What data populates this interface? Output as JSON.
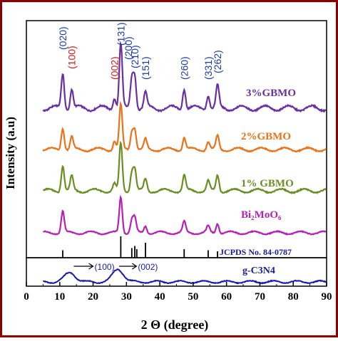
{
  "chart_data": {
    "type": "line",
    "xlabel": "2 Θ (degree)",
    "ylabel": "Intensity (a.u)",
    "xlim": [
      0,
      90
    ],
    "xticks": [
      0,
      10,
      20,
      30,
      40,
      50,
      60,
      70,
      80,
      90
    ],
    "grid": false,
    "legend": "none",
    "colors": {
      "frame": "#8b0000",
      "s3": "#6a2fa0",
      "s2": "#e8731a",
      "s1": "#6b8e23",
      "bmo": "#b422b4",
      "gcn": "#1a1aa8",
      "ref": "#000000"
    },
    "series": [
      {
        "name": "3%GBMO",
        "color": "#6a2fa0",
        "peaks": [
          [
            10.9,
            0.55
          ],
          [
            13.6,
            0.3
          ],
          [
            26.4,
            0.18
          ],
          [
            28.3,
            1.0
          ],
          [
            31.6,
            0.45
          ],
          [
            32.5,
            0.5
          ],
          [
            35.7,
            0.25
          ],
          [
            47.3,
            0.32
          ],
          [
            54.5,
            0.22
          ],
          [
            57.3,
            0.34
          ]
        ]
      },
      {
        "name": "2%GBMO",
        "color": "#e8731a",
        "peaks": [
          [
            10.9,
            0.5
          ],
          [
            13.6,
            0.28
          ],
          [
            26.4,
            0.2
          ],
          [
            28.3,
            1.0
          ],
          [
            31.6,
            0.4
          ],
          [
            32.5,
            0.45
          ],
          [
            35.7,
            0.22
          ],
          [
            47.3,
            0.28
          ],
          [
            54.5,
            0.18
          ],
          [
            57.3,
            0.3
          ]
        ]
      },
      {
        "name": "1% GBMO",
        "color": "#6b8e23",
        "peaks": [
          [
            10.9,
            0.55
          ],
          [
            13.6,
            0.3
          ],
          [
            26.4,
            0.15
          ],
          [
            28.3,
            1.0
          ],
          [
            31.6,
            0.4
          ],
          [
            32.5,
            0.45
          ],
          [
            35.7,
            0.25
          ],
          [
            47.3,
            0.32
          ],
          [
            54.5,
            0.2
          ],
          [
            57.3,
            0.34
          ]
        ]
      },
      {
        "name": "Bi₂MoO₆",
        "color": "#b422b4",
        "peaks": [
          [
            10.9,
            0.6
          ],
          [
            28.3,
            1.0
          ],
          [
            31.6,
            0.35
          ],
          [
            32.5,
            0.4
          ],
          [
            35.7,
            0.2
          ],
          [
            47.3,
            0.3
          ],
          [
            54.5,
            0.18
          ],
          [
            57.3,
            0.28
          ]
        ]
      },
      {
        "name": "g-C3N4",
        "color": "#1a1aa8",
        "peaks": [
          [
            13.1,
            0.55
          ],
          [
            27.5,
            0.75
          ]
        ]
      }
    ],
    "reference": {
      "label": "JCPDS No. 84-0787",
      "lines": [
        10.9,
        28.3,
        31.6,
        32.5,
        33.1,
        35.7,
        47.3,
        54.5,
        57.3
      ],
      "heights": [
        0.35,
        1.0,
        0.45,
        0.55,
        0.4,
        0.7,
        0.4,
        0.35,
        0.3
      ]
    },
    "annotations": {
      "main": [
        {
          "text": "(020)",
          "x": 10.9,
          "color": "#1a3aa8"
        },
        {
          "text": "(100)",
          "x": 13.6,
          "color": "#cc1a1a"
        },
        {
          "text": "(002)",
          "x": 26.4,
          "color": "#cc1a1a"
        },
        {
          "text": "(131)",
          "x": 28.3,
          "color": "#1a3aa8"
        },
        {
          "text": "(200)",
          "x": 30.6,
          "color": "#1a3aa8"
        },
        {
          "text": "(210)",
          "x": 32.5,
          "color": "#1a3aa8"
        },
        {
          "text": "(151)",
          "x": 35.7,
          "color": "#1a3aa8"
        },
        {
          "text": "(260)",
          "x": 47.3,
          "color": "#1a3aa8"
        },
        {
          "text": "(331)",
          "x": 54.5,
          "color": "#1a3aa8"
        },
        {
          "text": "(262)",
          "x": 57.3,
          "color": "#1a3aa8"
        }
      ],
      "gcn": [
        {
          "text": "(100)",
          "from": 14.2,
          "to": 20.0
        },
        {
          "text": "(002)",
          "from": 27.8,
          "to": 33.0
        }
      ]
    }
  }
}
